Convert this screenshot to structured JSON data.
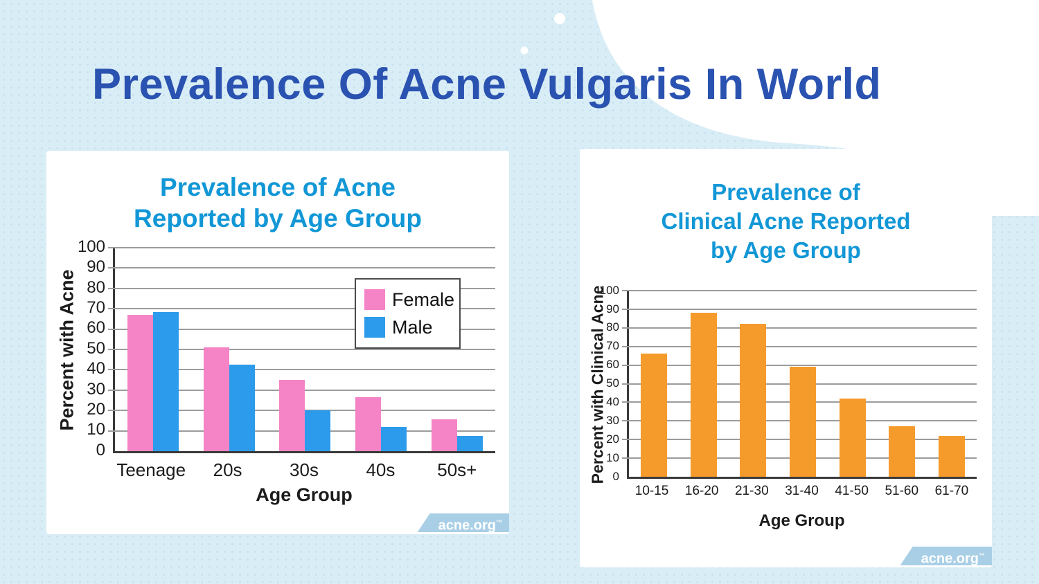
{
  "page": {
    "title": "Prevalence Of Acne Vulgaris In World"
  },
  "watermark": {
    "label": "acne.org",
    "trademark": "™"
  },
  "colors": {
    "page_bg": "#d9edf6",
    "dot": "#c6e1ee",
    "title": "#2a52b0",
    "chart_title": "#1297d6",
    "female": "#f584c6",
    "male": "#2d9beb",
    "orange": "#f59b2c",
    "banner_bg": "#a9cfe6"
  },
  "chart_data": [
    {
      "type": "bar",
      "title_lines": [
        "Prevalence of Acne",
        "Reported by Age Group"
      ],
      "categories": [
        "Teenage",
        "20s",
        "30s",
        "40s",
        "50s+"
      ],
      "series": [
        {
          "name": "Female",
          "color_key": "female",
          "values": [
            67,
            51,
            35,
            26.5,
            15.5
          ]
        },
        {
          "name": "Male",
          "color_key": "male",
          "values": [
            68.5,
            42.5,
            20,
            12,
            7.5
          ]
        }
      ],
      "xlabel": "Age Group",
      "ylabel": "Percent with Acne",
      "ylim": [
        0,
        100
      ],
      "yticks": [
        0,
        10,
        20,
        30,
        40,
        50,
        60,
        70,
        80,
        90,
        100
      ],
      "grid": true,
      "legend_position": "upper right"
    },
    {
      "type": "bar",
      "title_lines": [
        "Prevalence of",
        "Clinical Acne Reported",
        "by Age Group"
      ],
      "categories": [
        "10-15",
        "16-20",
        "21-30",
        "31-40",
        "41-50",
        "51-60",
        "61-70"
      ],
      "series": [
        {
          "name": "Clinical Acne",
          "color_key": "orange",
          "values": [
            66,
            88,
            82,
            59,
            42,
            27,
            22
          ]
        }
      ],
      "xlabel": "Age Group",
      "ylabel": "Percent with Clinical Acne",
      "ylim": [
        0,
        100
      ],
      "yticks": [
        0,
        10,
        20,
        30,
        40,
        50,
        60,
        70,
        80,
        90,
        100
      ],
      "grid": true,
      "legend_position": "none"
    }
  ]
}
